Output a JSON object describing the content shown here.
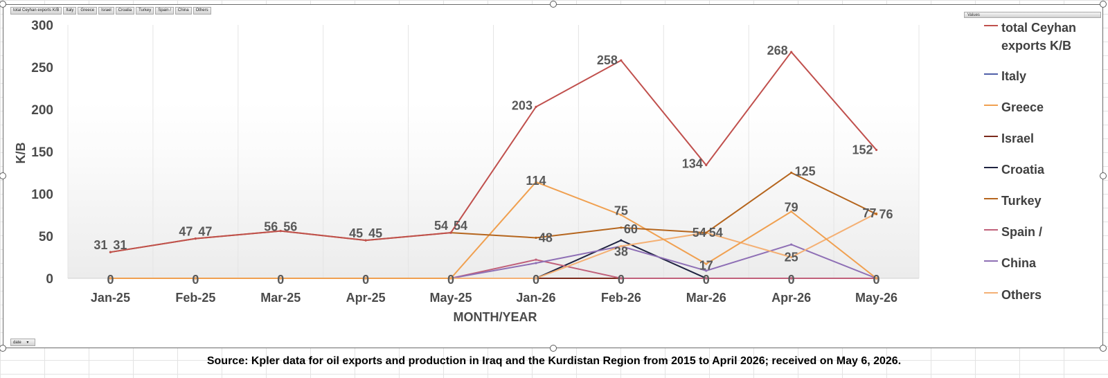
{
  "pivot": {
    "field_buttons": [
      "total Ceyhan  exports K/B",
      "Italy",
      "Greece",
      "Israel",
      "Croatia",
      "Turkey",
      "Spain /",
      "China",
      "Others"
    ],
    "values_button": "Values",
    "date_button": "date"
  },
  "source_note": "Source: Kpler data for oil exports and production in Iraq and the Kurdistan Region from 2015 to April 2026; received on May 6, 2026.",
  "chart_data": {
    "type": "line",
    "xlabel": "MONTH/YEAR",
    "ylabel": "K/B",
    "ylim": [
      0,
      300
    ],
    "yticks": [
      0,
      50,
      100,
      150,
      200,
      250,
      300
    ],
    "grid": "vertical",
    "legend_position": "right",
    "categories": [
      "Jan-25",
      "Feb-25",
      "Mar-25",
      "Apr-25",
      "May-25",
      "Jan-26",
      "Feb-26",
      "Mar-26",
      "Apr-26",
      "May-26"
    ],
    "series": [
      {
        "name": "total Ceyhan exports K/B",
        "color": "#c0504d",
        "values": [
          31,
          47,
          56,
          45,
          54,
          203,
          258,
          134,
          268,
          152
        ]
      },
      {
        "name": "Italy",
        "color": "#4f5fa8",
        "values": [
          0,
          0,
          0,
          0,
          0,
          0,
          0,
          0,
          0,
          0
        ]
      },
      {
        "name": "Greece",
        "color": "#f0a050",
        "values": [
          0,
          0,
          0,
          0,
          0,
          114,
          75,
          17,
          79,
          0
        ]
      },
      {
        "name": "Israel",
        "color": "#7b2a1c",
        "values": [
          0,
          0,
          0,
          0,
          0,
          0,
          0,
          0,
          0,
          0
        ]
      },
      {
        "name": "Croatia",
        "color": "#1f2340",
        "values": [
          0,
          0,
          0,
          0,
          0,
          0,
          45,
          0,
          0,
          0
        ]
      },
      {
        "name": "Turkey",
        "color": "#b5651d",
        "values": [
          31,
          47,
          56,
          45,
          54,
          48,
          60,
          54,
          125,
          76
        ]
      },
      {
        "name": "Spain /",
        "color": "#c0607a",
        "values": [
          0,
          0,
          0,
          0,
          0,
          22,
          0,
          0,
          0,
          0
        ]
      },
      {
        "name": "China",
        "color": "#8e6fb5",
        "values": [
          0,
          0,
          0,
          0,
          0,
          18,
          38,
          9,
          40,
          0
        ]
      },
      {
        "name": "Others",
        "color": "#f4b074",
        "values": [
          0,
          0,
          0,
          0,
          0,
          0,
          38,
          54,
          25,
          77
        ]
      }
    ],
    "data_labels": [
      {
        "text": "31",
        "x": "Jan-25",
        "y": 31
      },
      {
        "text": "31",
        "x": "Jan-25",
        "y": 31
      },
      {
        "text": "47",
        "x": "Feb-25",
        "y": 47
      },
      {
        "text": "47",
        "x": "Feb-25",
        "y": 47
      },
      {
        "text": "56",
        "x": "Mar-25",
        "y": 56
      },
      {
        "text": "56",
        "x": "Mar-25",
        "y": 56
      },
      {
        "text": "45",
        "x": "Apr-25",
        "y": 45
      },
      {
        "text": "45",
        "x": "Apr-25",
        "y": 45
      },
      {
        "text": "54",
        "x": "May-25",
        "y": 54
      },
      {
        "text": "54",
        "x": "May-25",
        "y": 54
      },
      {
        "text": "203",
        "x": "Jan-26",
        "y": 203
      },
      {
        "text": "114",
        "x": "Jan-26",
        "y": 114
      },
      {
        "text": "48",
        "x": "Jan-26",
        "y": 48
      },
      {
        "text": "258",
        "x": "Feb-26",
        "y": 258
      },
      {
        "text": "75",
        "x": "Feb-26",
        "y": 75
      },
      {
        "text": "60",
        "x": "Feb-26",
        "y": 60
      },
      {
        "text": "38",
        "x": "Feb-26",
        "y": 38
      },
      {
        "text": "134",
        "x": "Mar-26",
        "y": 134
      },
      {
        "text": "54",
        "x": "Mar-26",
        "y": 54
      },
      {
        "text": "54",
        "x": "Mar-26",
        "y": 54
      },
      {
        "text": "17",
        "x": "Mar-26",
        "y": 17
      },
      {
        "text": "268",
        "x": "Apr-26",
        "y": 268
      },
      {
        "text": "125",
        "x": "Apr-26",
        "y": 125
      },
      {
        "text": "79",
        "x": "Apr-26",
        "y": 79
      },
      {
        "text": "25",
        "x": "Apr-26",
        "y": 25
      },
      {
        "text": "152",
        "x": "May-26",
        "y": 152
      },
      {
        "text": "77",
        "x": "May-26",
        "y": 77
      },
      {
        "text": "76",
        "x": "May-26",
        "y": 76
      },
      {
        "text": "0",
        "x": "Jan-25",
        "y": 0
      },
      {
        "text": "0",
        "x": "Feb-25",
        "y": 0
      },
      {
        "text": "0",
        "x": "Mar-25",
        "y": 0
      },
      {
        "text": "0",
        "x": "Apr-25",
        "y": 0
      },
      {
        "text": "0",
        "x": "May-25",
        "y": 0
      },
      {
        "text": "0",
        "x": "Jan-26",
        "y": 0
      },
      {
        "text": "0",
        "x": "Feb-26",
        "y": 0
      },
      {
        "text": "0",
        "x": "Mar-26",
        "y": 0
      },
      {
        "text": "0",
        "x": "Apr-26",
        "y": 0
      },
      {
        "text": "0",
        "x": "May-26",
        "y": 0
      }
    ]
  }
}
